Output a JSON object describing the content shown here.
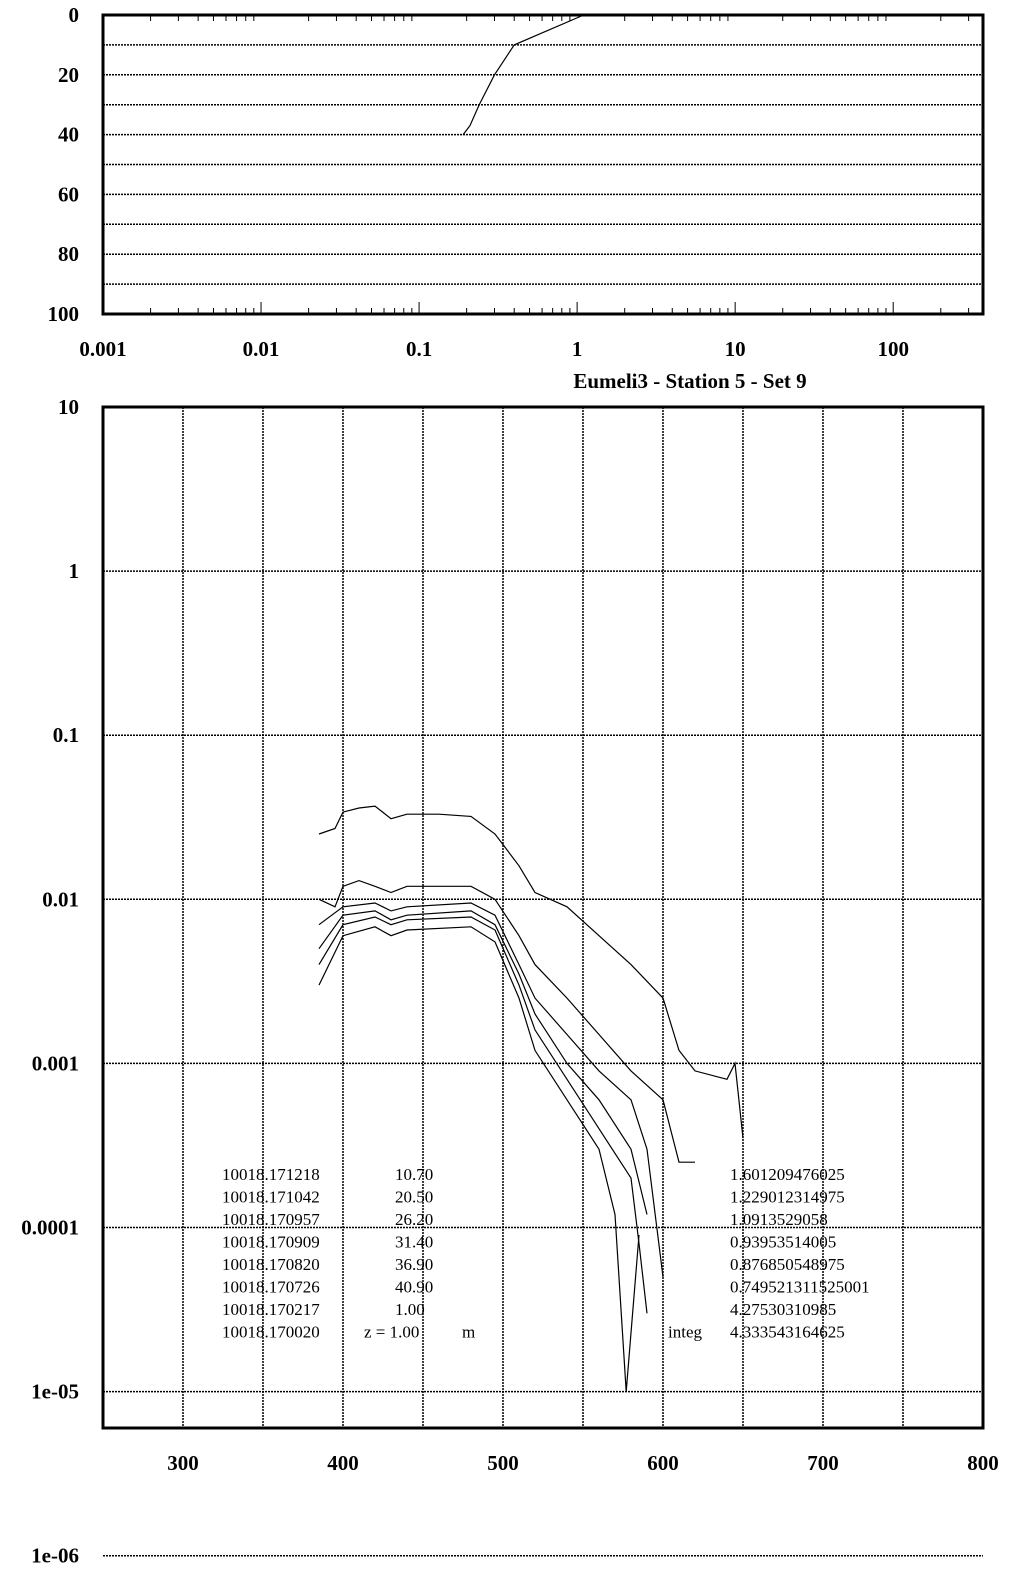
{
  "chart_data": [
    {
      "type": "line",
      "xscale": "log",
      "xlim": [
        0.001,
        370
      ],
      "xticks": [
        0.001,
        0.01,
        0.1,
        1,
        10,
        100
      ],
      "ylim": [
        0,
        100
      ],
      "yticks": [
        0,
        20,
        40,
        60,
        80,
        100
      ],
      "y_minor_ticks": [
        10,
        30,
        50,
        70,
        90
      ],
      "y_inverted": true,
      "grid": true,
      "series": [
        {
          "color": "#000000",
          "x": [
            1.1,
            0.4,
            0.3,
            0.24,
            0.21,
            0.19
          ],
          "values": [
            0,
            10,
            20,
            30,
            37,
            40
          ]
        }
      ]
    },
    {
      "type": "line",
      "title": "Eumeli3 - Station 5 - Set 9",
      "yscale": "log",
      "xlim": [
        250,
        800
      ],
      "xticks": [
        300,
        400,
        500,
        600,
        700,
        800
      ],
      "x_minor_ticks": [
        350,
        450,
        550,
        650,
        750
      ],
      "ylim": [
        6e-06,
        10
      ],
      "yticks": [
        10,
        1,
        0.1,
        0.01,
        0.001,
        0.0001,
        {
          "value": 1e-05,
          "label": "1e-05"
        },
        {
          "value": 1e-06,
          "label": "1e-06"
        }
      ],
      "grid": true,
      "series": [
        {
          "color": "#000000",
          "x": [
            385,
            395,
            400,
            410,
            420,
            430,
            440,
            460,
            480,
            495,
            510,
            520,
            540,
            560,
            580,
            600,
            610,
            620,
            640,
            645,
            650
          ],
          "values": [
            0.025,
            0.027,
            0.034,
            0.036,
            0.037,
            0.031,
            0.033,
            0.033,
            0.032,
            0.025,
            0.016,
            0.011,
            0.009,
            0.006,
            0.004,
            0.0025,
            0.0012,
            0.0009,
            0.0008,
            0.001,
            0.00035
          ]
        },
        {
          "color": "#000000",
          "x": [
            385,
            395,
            400,
            410,
            420,
            430,
            440,
            460,
            480,
            495,
            510,
            520,
            540,
            560,
            580,
            600,
            610,
            620
          ],
          "values": [
            0.01,
            0.009,
            0.012,
            0.013,
            0.012,
            0.011,
            0.012,
            0.012,
            0.012,
            0.01,
            0.006,
            0.004,
            0.0025,
            0.0015,
            0.0009,
            0.0006,
            0.00025,
            0.00025
          ]
        },
        {
          "color": "#000000",
          "x": [
            385,
            400,
            420,
            430,
            440,
            480,
            495,
            510,
            520,
            540,
            560,
            580,
            590,
            600
          ],
          "values": [
            0.007,
            0.009,
            0.0095,
            0.0085,
            0.009,
            0.0095,
            0.008,
            0.004,
            0.0025,
            0.0015,
            0.0009,
            0.0006,
            0.0003,
            5e-05
          ]
        },
        {
          "color": "#000000",
          "x": [
            385,
            400,
            420,
            430,
            440,
            480,
            495,
            510,
            520,
            540,
            560,
            580,
            590
          ],
          "values": [
            0.005,
            0.008,
            0.0085,
            0.0075,
            0.008,
            0.0085,
            0.007,
            0.0035,
            0.002,
            0.001,
            0.0006,
            0.0003,
            0.00012
          ]
        },
        {
          "color": "#000000",
          "x": [
            385,
            400,
            420,
            430,
            440,
            480,
            495,
            510,
            520,
            540,
            560,
            580,
            585,
            590
          ],
          "values": [
            0.004,
            0.007,
            0.0078,
            0.007,
            0.0075,
            0.0078,
            0.0065,
            0.003,
            0.0016,
            0.0008,
            0.0004,
            0.0002,
            8e-05,
            3e-05
          ]
        },
        {
          "color": "#000000",
          "x": [
            385,
            400,
            420,
            430,
            440,
            480,
            495,
            510,
            520,
            540,
            560,
            570,
            577,
            585
          ],
          "values": [
            0.003,
            0.006,
            0.0068,
            0.006,
            0.0065,
            0.0068,
            0.0055,
            0.0025,
            0.0012,
            0.0006,
            0.0003,
            0.00012,
            1e-05,
            9e-05
          ]
        }
      ],
      "annotations": [
        [
          "10018.171218",
          "10.70",
          "1.601209476025"
        ],
        [
          "10018.171042",
          "20.50",
          "1.229012314975"
        ],
        [
          "10018.170957",
          "26.20",
          "1.0913529058"
        ],
        [
          "10018.170909",
          "31.40",
          "0.93953514005"
        ],
        [
          "10018.170820",
          "36.90",
          "0.876850548975"
        ],
        [
          "10018.170726",
          "40.90",
          "0.749521311525001"
        ],
        [
          "10018.170217",
          "1.00",
          "4.27530310985"
        ],
        [
          "10018.170020",
          "z = 1.00",
          "m",
          "integ",
          "4.333543164625"
        ]
      ]
    }
  ]
}
